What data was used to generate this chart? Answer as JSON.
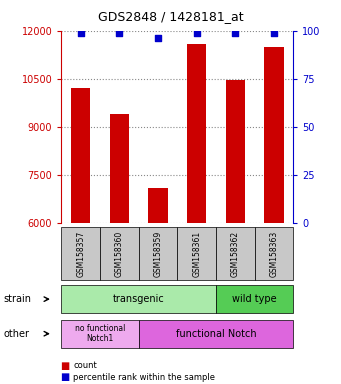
{
  "title": "GDS2848 / 1428181_at",
  "samples": [
    "GSM158357",
    "GSM158360",
    "GSM158359",
    "GSM158361",
    "GSM158362",
    "GSM158363"
  ],
  "counts": [
    10200,
    9400,
    7100,
    11600,
    10450,
    11500
  ],
  "percentiles": [
    99,
    99,
    96,
    99,
    99,
    99
  ],
  "ylim_left": [
    6000,
    12000
  ],
  "yticks_left": [
    6000,
    7500,
    9000,
    10500,
    12000
  ],
  "ylim_right": [
    0,
    100
  ],
  "yticks_right": [
    0,
    25,
    50,
    75,
    100
  ],
  "bar_color": "#cc0000",
  "dot_color": "#0000cc",
  "bar_width": 0.5,
  "strain_transgenic_label": "transgenic",
  "strain_wildtype_label": "wild type",
  "other_nofunc_label": "no functional\nNotch1",
  "other_func_label": "functional Notch",
  "strain_label": "strain",
  "other_label": "other",
  "legend_count": "count",
  "legend_percentile": "percentile rank within the sample",
  "left_axis_color": "#cc0000",
  "right_axis_color": "#0000cc",
  "grid_color": "#888888",
  "bg_color": "#ffffff",
  "tick_bg": "#c8c8c8",
  "strain_transgenic_color": "#aaeaaa",
  "strain_wildtype_color": "#55cc55",
  "other_nofunc_color": "#eeaaee",
  "other_func_color": "#dd66dd"
}
